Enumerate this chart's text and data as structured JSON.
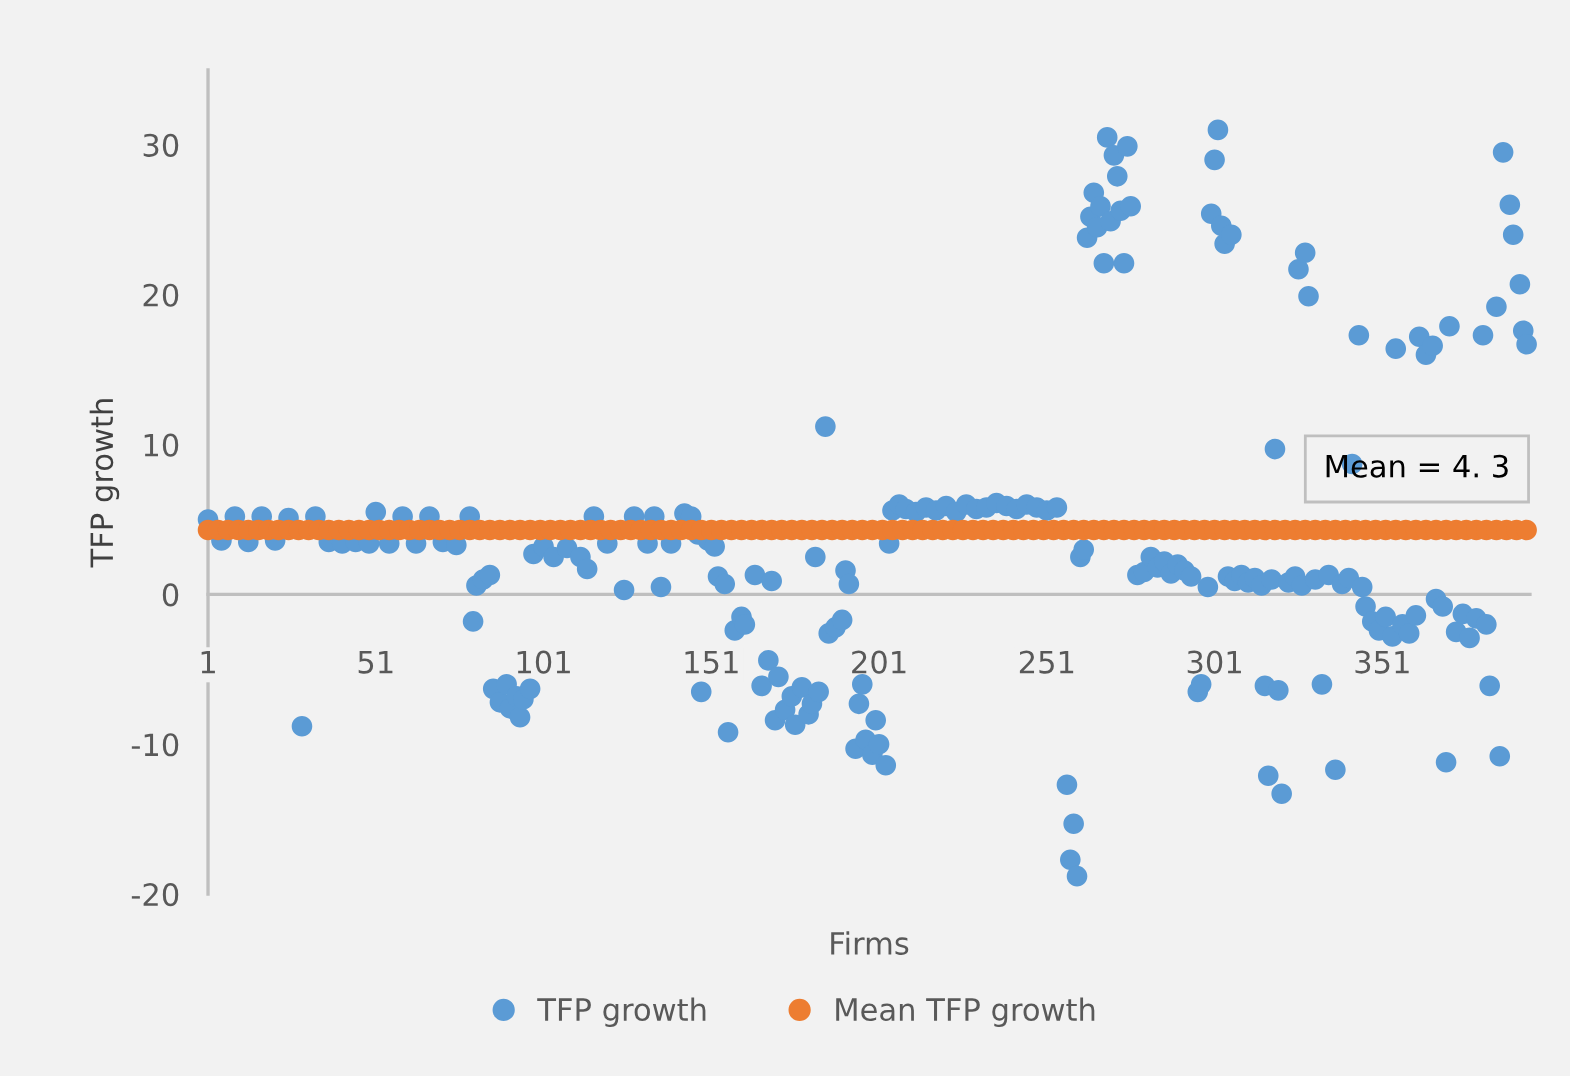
{
  "chart_data": {
    "type": "scatter",
    "xlabel": "Firms",
    "ylabel": "TFP growth",
    "xlim": [
      1,
      395
    ],
    "xticks": [
      1,
      51,
      101,
      151,
      201,
      251,
      301,
      351
    ],
    "ylim": [
      -20,
      35
    ],
    "yticks": [
      -20,
      -10,
      0,
      10,
      20,
      30
    ],
    "grid": false,
    "legend": "bottom",
    "marker": "circle",
    "annotations": [
      {
        "text": "Mean = 4. 3",
        "x": 360,
        "y": 4.3
      }
    ],
    "series": [
      {
        "name": "TFP growth",
        "color": "#5b9bd5",
        "x": [
          1,
          5,
          9,
          13,
          17,
          21,
          25,
          29,
          33,
          37,
          41,
          45,
          49,
          51,
          55,
          59,
          63,
          67,
          71,
          75,
          79,
          80,
          81,
          83,
          85,
          86,
          88,
          90,
          91,
          93,
          94,
          95,
          97,
          98,
          101,
          104,
          108,
          112,
          114,
          116,
          120,
          125,
          128,
          132,
          134,
          136,
          139,
          143,
          145,
          147,
          148,
          150,
          152,
          153,
          155,
          156,
          158,
          160,
          161,
          164,
          166,
          168,
          169,
          170,
          171,
          173,
          175,
          176,
          178,
          180,
          181,
          182,
          183,
          185,
          186,
          188,
          190,
          191,
          192,
          194,
          195,
          196,
          197,
          199,
          200,
          201,
          203,
          204,
          205,
          207,
          209,
          212,
          215,
          218,
          221,
          224,
          227,
          230,
          233,
          236,
          239,
          242,
          245,
          248,
          251,
          254,
          257,
          258,
          259,
          260,
          261,
          262,
          263,
          264,
          265,
          266,
          267,
          268,
          269,
          270,
          271,
          272,
          273,
          274,
          275,
          276,
          278,
          280,
          282,
          284,
          286,
          288,
          290,
          292,
          294,
          296,
          297,
          299,
          300,
          301,
          302,
          303,
          304,
          305,
          306,
          307,
          309,
          311,
          313,
          315,
          316,
          317,
          318,
          319,
          320,
          321,
          323,
          325,
          326,
          327,
          328,
          329,
          331,
          333,
          335,
          337,
          339,
          341,
          342,
          344,
          345,
          346,
          348,
          350,
          352,
          354,
          355,
          357,
          359,
          361,
          362,
          364,
          366,
          367,
          369,
          370,
          371,
          373,
          375,
          377,
          379,
          381,
          382,
          383,
          385,
          386,
          387,
          389,
          390,
          392,
          393,
          394
        ],
        "values": [
          5.0,
          3.6,
          5.2,
          3.5,
          5.2,
          3.6,
          5.1,
          -8.8,
          5.2,
          3.5,
          3.4,
          3.5,
          3.4,
          5.5,
          3.4,
          5.2,
          3.4,
          5.2,
          3.5,
          3.3,
          5.2,
          -1.8,
          0.6,
          1.0,
          1.3,
          -6.3,
          -7.2,
          -6.0,
          -7.6,
          -6.8,
          -8.2,
          -7.0,
          -6.3,
          2.7,
          3.2,
          2.5,
          3.1,
          2.5,
          1.7,
          5.2,
          3.4,
          0.3,
          5.2,
          3.4,
          5.2,
          0.5,
          3.4,
          5.4,
          5.2,
          4.0,
          -6.5,
          3.6,
          3.2,
          1.2,
          0.7,
          -9.2,
          -2.4,
          -1.5,
          -2.0,
          1.3,
          -6.1,
          -4.4,
          0.9,
          -8.4,
          -5.5,
          -7.7,
          -6.8,
          -8.7,
          -6.2,
          -8.0,
          -7.3,
          2.5,
          -6.5,
          11.2,
          -2.6,
          -2.2,
          -1.7,
          1.6,
          0.7,
          -10.3,
          -7.3,
          -6.0,
          -9.7,
          -10.7,
          -8.4,
          -10.0,
          -11.4,
          3.4,
          5.6,
          6.0,
          5.7,
          5.5,
          5.8,
          5.6,
          5.9,
          5.5,
          6.0,
          5.7,
          5.8,
          6.1,
          5.9,
          5.7,
          6.0,
          5.8,
          5.6,
          5.8,
          -12.7,
          -17.7,
          -15.3,
          -18.8,
          2.5,
          3.0,
          23.8,
          25.2,
          26.8,
          24.5,
          25.9,
          22.1,
          30.5,
          24.9,
          29.3,
          27.9,
          25.6,
          22.1,
          29.9,
          25.9,
          1.3,
          1.5,
          2.5,
          1.8,
          2.2,
          1.4,
          2.0,
          1.6,
          1.2,
          -6.5,
          -6.0,
          0.5,
          25.4,
          29.0,
          31.0,
          24.6,
          23.4,
          1.2,
          24.0,
          0.9,
          1.3,
          0.8,
          1.1,
          0.6,
          -6.1,
          -12.1,
          1.0,
          9.7,
          -6.4,
          -13.3,
          0.8,
          1.2,
          21.7,
          0.6,
          22.8,
          19.9,
          1.0,
          -6.0,
          1.3,
          -11.7,
          0.7,
          1.1,
          8.7,
          17.3,
          0.5,
          -0.8,
          -1.8,
          -2.4,
          -1.5,
          -2.8,
          16.4,
          -2.0,
          -2.6,
          -1.4,
          17.2,
          16.0,
          16.6,
          -0.3,
          -0.8,
          -11.2,
          17.9,
          -2.5,
          -1.3,
          -2.9,
          -1.6,
          17.3,
          -2.0,
          -6.1,
          19.2,
          -10.8,
          29.5,
          26.0,
          24.0,
          20.7,
          17.6,
          16.7
        ]
      },
      {
        "name": "Mean TFP growth",
        "color": "#ed7d31",
        "x": [
          1,
          4,
          7,
          10,
          13,
          16,
          19,
          22,
          25,
          28,
          31,
          34,
          37,
          40,
          43,
          46,
          49,
          52,
          55,
          58,
          61,
          64,
          67,
          70,
          73,
          76,
          79,
          82,
          85,
          88,
          91,
          94,
          97,
          100,
          103,
          106,
          109,
          112,
          115,
          118,
          121,
          124,
          127,
          130,
          133,
          136,
          139,
          142,
          145,
          148,
          151,
          154,
          157,
          160,
          163,
          166,
          169,
          172,
          175,
          178,
          181,
          184,
          187,
          190,
          193,
          196,
          199,
          202,
          205,
          208,
          211,
          214,
          217,
          220,
          223,
          226,
          229,
          232,
          235,
          238,
          241,
          244,
          247,
          250,
          253,
          256,
          259,
          262,
          265,
          268,
          271,
          274,
          277,
          280,
          283,
          286,
          289,
          292,
          295,
          298,
          301,
          304,
          307,
          310,
          313,
          316,
          319,
          322,
          325,
          328,
          331,
          334,
          337,
          340,
          343,
          346,
          349,
          352,
          355,
          358,
          361,
          364,
          367,
          370,
          373,
          376,
          379,
          382,
          385,
          388,
          391,
          394
        ],
        "values": [
          4.3,
          4.3,
          4.3,
          4.3,
          4.3,
          4.3,
          4.3,
          4.3,
          4.3,
          4.3,
          4.3,
          4.3,
          4.3,
          4.3,
          4.3,
          4.3,
          4.3,
          4.3,
          4.3,
          4.3,
          4.3,
          4.3,
          4.3,
          4.3,
          4.3,
          4.3,
          4.3,
          4.3,
          4.3,
          4.3,
          4.3,
          4.3,
          4.3,
          4.3,
          4.3,
          4.3,
          4.3,
          4.3,
          4.3,
          4.3,
          4.3,
          4.3,
          4.3,
          4.3,
          4.3,
          4.3,
          4.3,
          4.3,
          4.3,
          4.3,
          4.3,
          4.3,
          4.3,
          4.3,
          4.3,
          4.3,
          4.3,
          4.3,
          4.3,
          4.3,
          4.3,
          4.3,
          4.3,
          4.3,
          4.3,
          4.3,
          4.3,
          4.3,
          4.3,
          4.3,
          4.3,
          4.3,
          4.3,
          4.3,
          4.3,
          4.3,
          4.3,
          4.3,
          4.3,
          4.3,
          4.3,
          4.3,
          4.3,
          4.3,
          4.3,
          4.3,
          4.3,
          4.3,
          4.3,
          4.3,
          4.3,
          4.3,
          4.3,
          4.3,
          4.3,
          4.3,
          4.3,
          4.3,
          4.3,
          4.3,
          4.3,
          4.3,
          4.3,
          4.3,
          4.3,
          4.3,
          4.3,
          4.3,
          4.3,
          4.3,
          4.3,
          4.3,
          4.3,
          4.3,
          4.3,
          4.3,
          4.3,
          4.3,
          4.3,
          4.3,
          4.3,
          4.3,
          4.3,
          4.3,
          4.3,
          4.3,
          4.3,
          4.3,
          4.3,
          4.3,
          4.3,
          4.3
        ]
      }
    ]
  }
}
